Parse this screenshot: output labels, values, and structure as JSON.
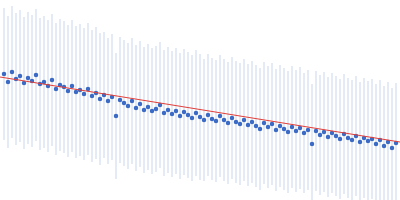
{
  "chart_data": {
    "type": "scatter",
    "xlim": [
      0,
      400
    ],
    "ylim": [
      0,
      200
    ],
    "tick_labels": false,
    "grid": false,
    "series": [
      {
        "type": "scatter",
        "color": "#3b6bc4",
        "marker": "circle",
        "x": [
          4,
          8,
          12,
          16,
          20,
          24,
          28,
          32,
          36,
          40,
          44,
          48,
          52,
          56,
          60,
          64,
          68,
          72,
          76,
          80,
          84,
          88,
          92,
          96,
          100,
          104,
          108,
          112,
          116,
          120,
          124,
          128,
          132,
          136,
          140,
          144,
          148,
          152,
          156,
          160,
          164,
          168,
          172,
          176,
          180,
          184,
          188,
          192,
          196,
          200,
          204,
          208,
          212,
          216,
          220,
          224,
          228,
          232,
          236,
          240,
          244,
          248,
          252,
          256,
          260,
          264,
          268,
          272,
          276,
          280,
          284,
          288,
          292,
          296,
          300,
          304,
          308,
          312,
          316,
          320,
          324,
          328,
          332,
          336,
          340,
          344,
          348,
          352,
          356,
          360,
          364,
          368,
          372,
          376,
          380,
          384,
          388,
          392,
          396
        ],
        "values": [
          126,
          118,
          128,
          121,
          124,
          117,
          122,
          119,
          125,
          116,
          118,
          114,
          120,
          111,
          115,
          113,
          109,
          114,
          108,
          110,
          106,
          111,
          104,
          107,
          101,
          105,
          99,
          103,
          84,
          100,
          97,
          94,
          99,
          92,
          96,
          90,
          93,
          89,
          91,
          95,
          87,
          90,
          86,
          89,
          84,
          88,
          85,
          82,
          87,
          83,
          80,
          85,
          81,
          79,
          84,
          80,
          77,
          82,
          78,
          76,
          80,
          75,
          78,
          74,
          71,
          77,
          73,
          76,
          70,
          74,
          71,
          68,
          73,
          69,
          72,
          67,
          70,
          56,
          69,
          65,
          68,
          63,
          67,
          64,
          61,
          66,
          62,
          60,
          64,
          58,
          62,
          59,
          61,
          56,
          60,
          54,
          58,
          52,
          57
        ],
        "error": [
          66,
          66,
          66,
          66,
          66,
          66,
          66,
          66,
          66,
          66,
          66,
          66,
          66,
          66,
          66,
          66,
          66,
          66,
          66,
          66,
          66,
          66,
          66,
          66,
          66,
          63,
          63,
          63,
          63,
          63,
          63,
          63,
          63,
          63,
          63,
          63,
          63,
          63,
          63,
          63,
          63,
          63,
          63,
          63,
          63,
          63,
          63,
          63,
          63,
          63,
          61,
          61,
          61,
          61,
          61,
          61,
          61,
          61,
          61,
          61,
          61,
          61,
          61,
          61,
          61,
          61,
          61,
          61,
          61,
          61,
          61,
          61,
          61,
          61,
          61,
          60,
          60,
          60,
          60,
          60,
          60,
          60,
          60,
          60,
          60,
          60,
          60,
          60,
          60,
          60,
          60,
          60,
          60,
          60,
          60,
          60,
          60,
          60,
          60
        ],
        "error_color": "#c9d6ee"
      },
      {
        "type": "line",
        "color": "#e0403a",
        "line_style": "solid",
        "x": [
          0,
          400
        ],
        "values": [
          123,
          58
        ]
      }
    ]
  }
}
